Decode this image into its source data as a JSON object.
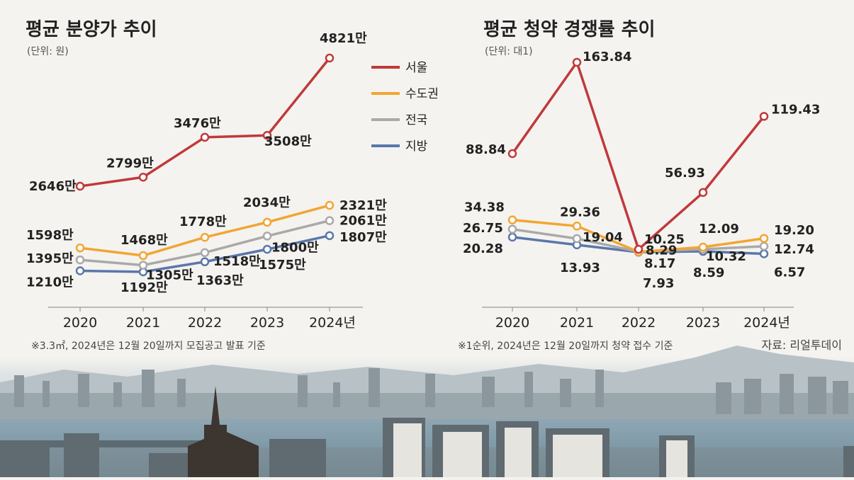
{
  "source": "자료: 리얼투데이",
  "legend": [
    {
      "name": "서울",
      "color": "#c0393b"
    },
    {
      "name": "수도권",
      "color": "#f2a533"
    },
    {
      "name": "전국",
      "color": "#a9a9a9"
    },
    {
      "name": "지방",
      "color": "#5a77ab"
    }
  ],
  "chart_data": [
    {
      "type": "line",
      "title": "평균 분양가 추이",
      "unit": "(단위: 원)",
      "categories": [
        "2020",
        "2021",
        "2022",
        "2023",
        "2024년"
      ],
      "ylim": [
        900,
        5000
      ],
      "note": "※3.3㎡, 2024년은 12월 20일까지 모집공고 발표 기준",
      "series": [
        {
          "name": "서울",
          "color": "#c0393b",
          "values": [
            2646,
            2799,
            3476,
            3508,
            4821
          ],
          "labels": [
            "2646만",
            "2799만",
            "3476만",
            "3508만",
            "4821만"
          ]
        },
        {
          "name": "수도권",
          "color": "#f2a533",
          "values": [
            1598,
            1468,
            1778,
            2034,
            2321
          ],
          "labels": [
            "1598만",
            "1468만",
            "1778만",
            "2034만",
            "2321만"
          ]
        },
        {
          "name": "전국",
          "color": "#a9a9a9",
          "values": [
            1395,
            1305,
            1518,
            1800,
            2061
          ],
          "labels": [
            "1395만",
            "1305만",
            "1518만",
            "1800만",
            "2061만"
          ]
        },
        {
          "name": "지방",
          "color": "#5a77ab",
          "values": [
            1210,
            1192,
            1363,
            1575,
            1807
          ],
          "labels": [
            "1210만",
            "1192만",
            "1363만",
            "1575만",
            "1807만"
          ]
        }
      ]
    },
    {
      "type": "line",
      "title": "평균 청약 경쟁률 추이",
      "unit": "(단위: 대1)",
      "categories": [
        "2020",
        "2021",
        "2022",
        "2023",
        "2024년"
      ],
      "ylim": [
        0,
        170
      ],
      "note": "※1순위, 2024년은 12월 20일까지 청약 접수 기준",
      "series": [
        {
          "name": "서울",
          "color": "#c0393b",
          "values": [
            88.84,
            163.84,
            10.25,
            56.93,
            119.43
          ],
          "labels": [
            "88.84",
            "163.84",
            "10.25",
            "56.93",
            "119.43"
          ]
        },
        {
          "name": "수도권",
          "color": "#f2a533",
          "values": [
            34.38,
            29.36,
            8.17,
            12.09,
            19.2
          ],
          "labels": [
            "34.38",
            "29.36",
            "8.17",
            "12.09",
            "19.20"
          ]
        },
        {
          "name": "전국",
          "color": "#a9a9a9",
          "values": [
            26.75,
            19.04,
            8.29,
            10.32,
            12.74
          ],
          "labels": [
            "26.75",
            "19.04",
            "8.29",
            "10.32",
            "12.74"
          ]
        },
        {
          "name": "지방",
          "color": "#5a77ab",
          "values": [
            20.28,
            13.93,
            7.93,
            8.59,
            6.57
          ],
          "labels": [
            "20.28",
            "13.93",
            "7.93",
            "8.59",
            "6.57"
          ]
        }
      ]
    }
  ]
}
